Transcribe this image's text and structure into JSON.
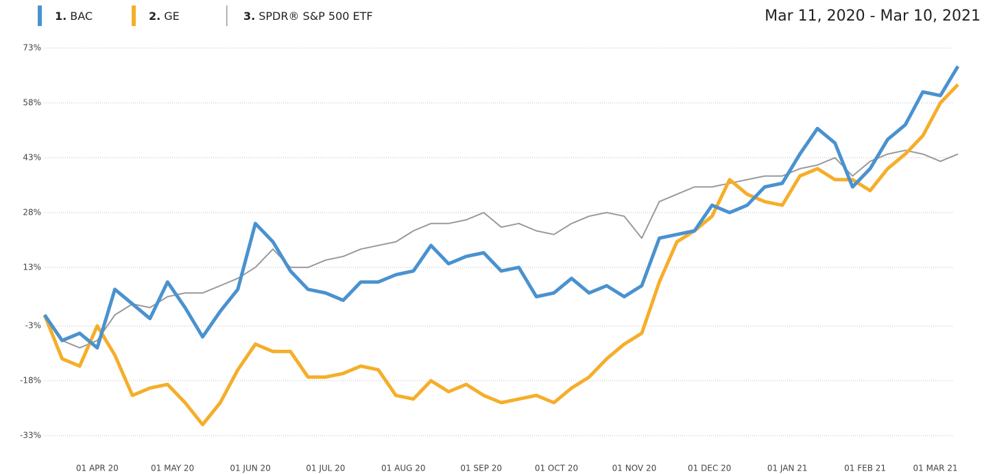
{
  "chart_data": {
    "type": "line",
    "date_range": "Mar 11, 2020 - Mar 10, 2021",
    "x": [
      "2020-03-11",
      "2020-03-18",
      "2020-03-25",
      "2020-04-01",
      "2020-04-08",
      "2020-04-15",
      "2020-04-22",
      "2020-04-29",
      "2020-05-06",
      "2020-05-13",
      "2020-05-20",
      "2020-05-27",
      "2020-06-03",
      "2020-06-10",
      "2020-06-17",
      "2020-06-24",
      "2020-07-01",
      "2020-07-08",
      "2020-07-15",
      "2020-07-22",
      "2020-07-29",
      "2020-08-05",
      "2020-08-12",
      "2020-08-19",
      "2020-08-26",
      "2020-09-02",
      "2020-09-09",
      "2020-09-16",
      "2020-09-23",
      "2020-09-30",
      "2020-10-07",
      "2020-10-14",
      "2020-10-21",
      "2020-10-28",
      "2020-11-04",
      "2020-11-11",
      "2020-11-18",
      "2020-11-25",
      "2020-12-02",
      "2020-12-09",
      "2020-12-16",
      "2020-12-23",
      "2020-12-30",
      "2021-01-06",
      "2021-01-13",
      "2021-01-20",
      "2021-01-27",
      "2021-02-03",
      "2021-02-10",
      "2021-02-17",
      "2021-02-24",
      "2021-03-03",
      "2021-03-10"
    ],
    "series": [
      {
        "prefix": "1.",
        "name": "BAC",
        "color": "#4a92cf",
        "width": 5,
        "values": [
          0,
          -7,
          -5,
          -9,
          7,
          3,
          -1,
          9,
          2,
          -6,
          1,
          7,
          25,
          20,
          12,
          7,
          6,
          4,
          9,
          9,
          11,
          12,
          19,
          14,
          16,
          17,
          12,
          13,
          5,
          6,
          10,
          6,
          8,
          5,
          8,
          21,
          22,
          23,
          30,
          28,
          30,
          35,
          36,
          44,
          51,
          47,
          35,
          40,
          48,
          52,
          61,
          60,
          68
        ]
      },
      {
        "prefix": "2.",
        "name": "GE",
        "color": "#f5ae2a",
        "width": 5,
        "values": [
          0,
          -12,
          -14,
          -3,
          -11,
          -22,
          -20,
          -19,
          -24,
          -30,
          -24,
          -15,
          -8,
          -10,
          -10,
          -17,
          -17,
          -16,
          -14,
          -15,
          -22,
          -23,
          -18,
          -21,
          -19,
          -22,
          -24,
          -23,
          -22,
          -24,
          -20,
          -17,
          -12,
          -8,
          -5,
          9,
          20,
          23,
          27,
          37,
          33,
          31,
          30,
          38,
          40,
          37,
          37,
          34,
          40,
          44,
          49,
          58,
          63
        ]
      },
      {
        "prefix": "3.",
        "name": "SPDR® S&P 500 ETF",
        "color": "#999999",
        "width": 2,
        "values": [
          0,
          -7,
          -9,
          -7,
          0,
          3,
          2,
          5,
          6,
          6,
          8,
          10,
          13,
          18,
          13,
          13,
          15,
          16,
          18,
          19,
          20,
          23,
          25,
          25,
          26,
          28,
          24,
          25,
          23,
          22,
          25,
          27,
          28,
          27,
          21,
          31,
          33,
          35,
          35,
          36,
          37,
          38,
          38,
          40,
          41,
          43,
          38,
          42,
          44,
          45,
          44,
          42,
          44
        ]
      }
    ],
    "xlim": [
      "2020-03-11",
      "2021-03-10"
    ],
    "xticks": [
      {
        "value": "2020-04-01",
        "label": "01 APR 20"
      },
      {
        "value": "2020-05-01",
        "label": "01 MAY 20"
      },
      {
        "value": "2020-06-01",
        "label": "01 JUN 20"
      },
      {
        "value": "2020-07-01",
        "label": "01 JUL 20"
      },
      {
        "value": "2020-08-01",
        "label": "01 AUG 20"
      },
      {
        "value": "2020-09-01",
        "label": "01 SEP 20"
      },
      {
        "value": "2020-10-01",
        "label": "01 OCT 20"
      },
      {
        "value": "2020-11-01",
        "label": "01 NOV 20"
      },
      {
        "value": "2020-12-01",
        "label": "01 DEC 20"
      },
      {
        "value": "2021-01-01",
        "label": "01 JAN 21"
      },
      {
        "value": "2021-02-01",
        "label": "01 FEB 21"
      },
      {
        "value": "2021-03-01",
        "label": "01 MAR 21"
      }
    ],
    "ylim": [
      -33,
      73
    ],
    "yticks": [
      {
        "value": -33,
        "label": "-33%"
      },
      {
        "value": -18,
        "label": "-18%"
      },
      {
        "value": -3,
        "label": "-3%"
      },
      {
        "value": 13,
        "label": "13%"
      },
      {
        "value": 28,
        "label": "28%"
      },
      {
        "value": 43,
        "label": "43%"
      },
      {
        "value": 58,
        "label": "58%"
      },
      {
        "value": 73,
        "label": "73%"
      }
    ],
    "grid": true
  }
}
